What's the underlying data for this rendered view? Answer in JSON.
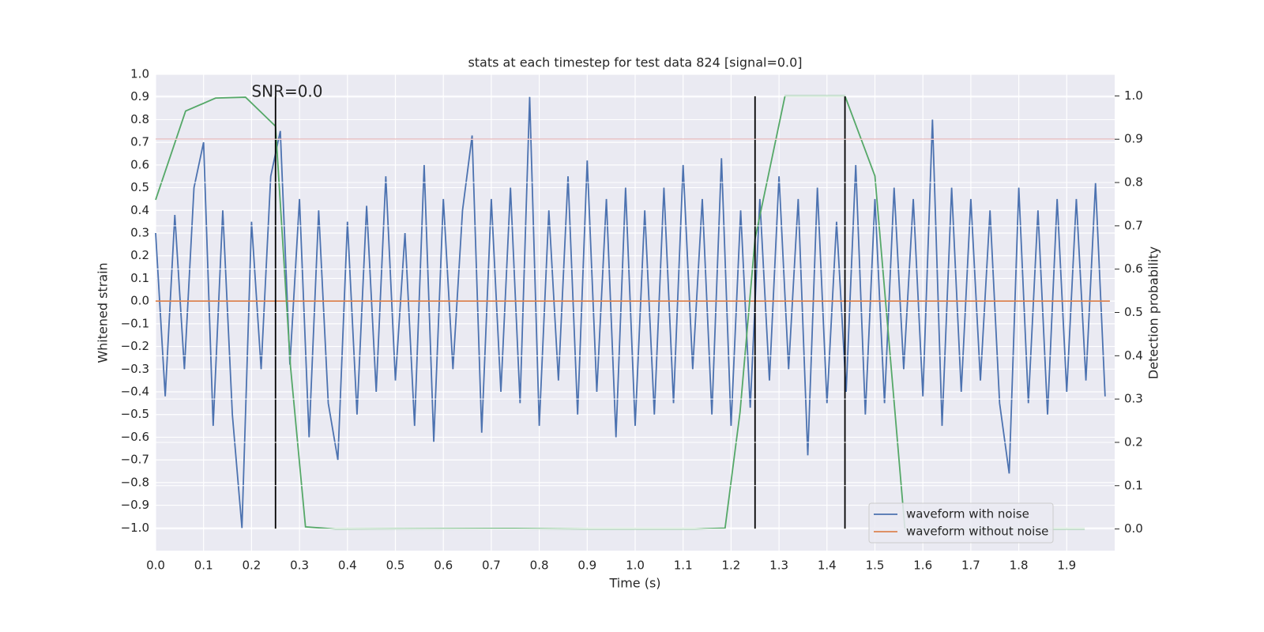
{
  "chart_data": {
    "type": "line",
    "title": "stats at each timestep for test data 824 [signal=0.0]",
    "x_label": "Time (s)",
    "y_label": "Whitened strain",
    "y2_label": "Detection probability",
    "xlim": [
      0,
      2.0
    ],
    "ylim": [
      -1.1,
      1.0
    ],
    "y2lim": [
      -0.05,
      1.05
    ],
    "xticks": [
      {
        "value": 0,
        "label": "0.0"
      },
      0.1,
      0.2,
      0.3,
      0.4,
      0.5,
      0.6,
      0.7,
      0.8,
      0.9,
      {
        "value": 1,
        "label": "1.0"
      },
      1.1,
      1.2,
      1.3,
      1.4,
      1.5,
      1.6,
      1.7,
      1.8,
      1.9
    ],
    "yticks": [
      {
        "value": -1,
        "label": "−1.0"
      },
      {
        "value": -0.9,
        "label": "−0.9"
      },
      {
        "value": -0.8,
        "label": "−0.8"
      },
      {
        "value": -0.7,
        "label": "−0.7"
      },
      {
        "value": -0.6,
        "label": "−0.6"
      },
      {
        "value": -0.5,
        "label": "−0.5"
      },
      {
        "value": -0.4,
        "label": "−0.4"
      },
      {
        "value": -0.3,
        "label": "−0.3"
      },
      {
        "value": -0.2,
        "label": "−0.2"
      },
      {
        "value": -0.1,
        "label": "−0.1"
      },
      {
        "value": 0,
        "label": "0.0"
      },
      0.1,
      0.2,
      0.3,
      0.4,
      0.5,
      0.6,
      0.7,
      0.8,
      0.9,
      {
        "value": 1,
        "label": "1.0"
      }
    ],
    "y2ticks": [
      {
        "value": 0,
        "label": "0.0"
      },
      0.1,
      0.2,
      0.3,
      0.4,
      0.5,
      0.6,
      0.7,
      0.8,
      0.9,
      {
        "value": 1,
        "label": "1.0"
      }
    ],
    "grid": true,
    "legend_position": "lower right",
    "series": [
      {
        "name": "waveform with noise",
        "color": "#4c72b0",
        "x": [
          0,
          0.02,
          0.04,
          0.06,
          0.08,
          0.1,
          0.12,
          0.14,
          0.16,
          0.18,
          0.2,
          0.22,
          0.24,
          0.26,
          0.28,
          0.3,
          0.32,
          0.34,
          0.36,
          0.38,
          0.4,
          0.42,
          0.44,
          0.46,
          0.48,
          0.5,
          0.52,
          0.54,
          0.56,
          0.58,
          0.6,
          0.62,
          0.64,
          0.66,
          0.68,
          0.7,
          0.72,
          0.74,
          0.76,
          0.78,
          0.8,
          0.82,
          0.84,
          0.86,
          0.88,
          0.9,
          0.92,
          0.94,
          0.96,
          0.98,
          1.0,
          1.02,
          1.04,
          1.06,
          1.08,
          1.1,
          1.12,
          1.14,
          1.16,
          1.18,
          1.2,
          1.22,
          1.24,
          1.26,
          1.28,
          1.3,
          1.32,
          1.34,
          1.36,
          1.38,
          1.4,
          1.42,
          1.44,
          1.46,
          1.48,
          1.5,
          1.52,
          1.54,
          1.56,
          1.58,
          1.6,
          1.62,
          1.64,
          1.66,
          1.68,
          1.7,
          1.72,
          1.74,
          1.76,
          1.78,
          1.8,
          1.82,
          1.84,
          1.86,
          1.88,
          1.9,
          1.92,
          1.94,
          1.96,
          1.98
        ],
        "values": [
          0.3,
          -0.42,
          0.38,
          -0.3,
          0.5,
          0.7,
          -0.55,
          0.4,
          -0.5,
          -1.0,
          0.35,
          -0.3,
          0.55,
          0.75,
          -0.28,
          0.45,
          -0.6,
          0.4,
          -0.45,
          -0.7,
          0.35,
          -0.5,
          0.42,
          -0.4,
          0.55,
          -0.35,
          0.3,
          -0.55,
          0.6,
          -0.62,
          0.45,
          -0.3,
          0.4,
          0.73,
          -0.58,
          0.45,
          -0.4,
          0.5,
          -0.45,
          0.9,
          -0.55,
          0.4,
          -0.35,
          0.55,
          -0.5,
          0.62,
          -0.4,
          0.45,
          -0.6,
          0.5,
          -0.55,
          0.4,
          -0.5,
          0.5,
          -0.45,
          0.6,
          -0.3,
          0.45,
          -0.5,
          0.63,
          -0.55,
          0.4,
          -0.47,
          0.45,
          -0.35,
          0.55,
          -0.3,
          0.45,
          -0.68,
          0.5,
          -0.45,
          0.35,
          -0.4,
          0.6,
          -0.5,
          0.45,
          -0.45,
          0.5,
          -0.3,
          0.45,
          -0.42,
          0.8,
          -0.55,
          0.5,
          -0.4,
          0.45,
          -0.35,
          0.4,
          -0.45,
          -0.76,
          0.5,
          -0.45,
          0.4,
          -0.5,
          0.45,
          -0.4,
          0.45,
          -0.35,
          0.52,
          -0.42
        ]
      },
      {
        "name": "waveform without noise",
        "color": "#dd8452",
        "x": [
          0,
          1.99
        ],
        "values": [
          0,
          0
        ]
      }
    ],
    "probability": {
      "color": "#55a868",
      "axis": "y2",
      "x": [
        0,
        0.0625,
        0.125,
        0.1875,
        0.25,
        0.28125,
        0.3125,
        0.375,
        0.75,
        0.9,
        1.125,
        1.1875,
        1.21875,
        1.25,
        1.3125,
        1.4375,
        1.5,
        1.5625,
        1.9375
      ],
      "values": [
        0.76,
        0.965,
        0.995,
        0.997,
        0.93,
        0.375,
        0.005,
        0.0,
        0.001,
        0.0,
        0.0,
        0.002,
        0.27,
        0.67,
        1.0,
        1.0,
        0.815,
        0.0,
        0.0
      ]
    },
    "threshold": {
      "value": 0.9,
      "axis": "y2",
      "color": "#c44e52"
    },
    "markers": {
      "x": [
        0.25,
        1.25,
        1.4375
      ],
      "color": "#000000"
    },
    "annotation": {
      "text": "SNR=0.0",
      "x": 0.2,
      "y": 0.92
    }
  }
}
